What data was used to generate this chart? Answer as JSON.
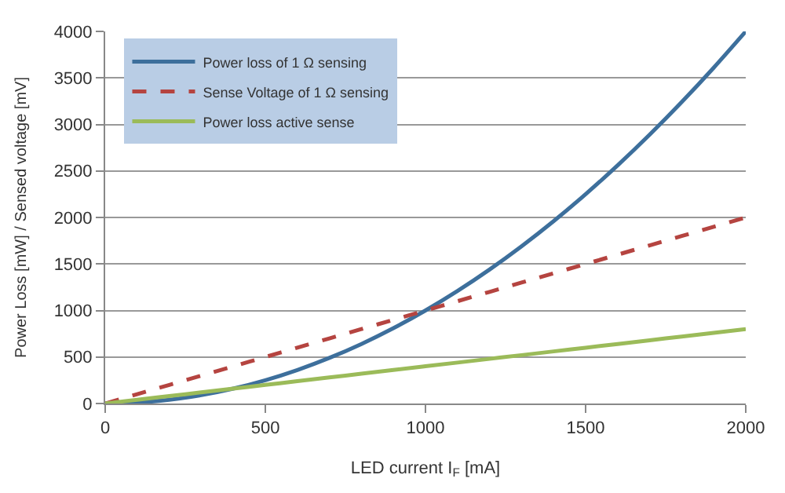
{
  "chart_data": {
    "type": "line",
    "xlabel": "LED current I$_{F}$ [mA]",
    "ylabel": "Power Loss [mW] / Sensed voltage [mV]",
    "x": [
      0,
      100,
      200,
      300,
      400,
      500,
      600,
      700,
      800,
      900,
      1000,
      1100,
      1200,
      1300,
      1400,
      1500,
      1600,
      1700,
      1800,
      1900,
      2000
    ],
    "series": [
      {
        "name": "Power loss of 1 Ω sensing",
        "color": "#3d6f9c",
        "line_style": "solid",
        "values": [
          0,
          10,
          40,
          90,
          160,
          250,
          360,
          490,
          640,
          810,
          1000,
          1210,
          1440,
          1690,
          1960,
          2250,
          2560,
          2890,
          3240,
          3610,
          4000
        ]
      },
      {
        "name": "Sense Voltage of 1 Ω sensing",
        "color": "#b54440",
        "line_style": "dashed",
        "values": [
          0,
          100,
          200,
          300,
          400,
          500,
          600,
          700,
          800,
          900,
          1000,
          1100,
          1200,
          1300,
          1400,
          1500,
          1600,
          1700,
          1800,
          1900,
          2000
        ]
      },
      {
        "name": "Power loss active sense",
        "color": "#9bbb59",
        "line_style": "solid",
        "values": [
          0,
          40,
          80,
          120,
          160,
          200,
          240,
          280,
          320,
          360,
          400,
          440,
          480,
          520,
          560,
          600,
          640,
          680,
          720,
          760,
          800
        ]
      }
    ],
    "xlim": [
      0,
      2000
    ],
    "xticks": [
      0,
      500,
      1000,
      1500,
      2000
    ],
    "ylim": [
      0,
      4000
    ],
    "yticks": [
      0,
      500,
      1000,
      1500,
      2000,
      2500,
      3000,
      3500,
      4000
    ],
    "grid": "y",
    "legend": "top left",
    "marker": "none"
  }
}
